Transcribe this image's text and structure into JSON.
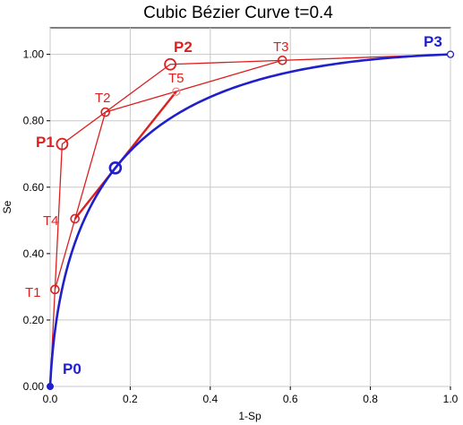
{
  "chart_data": {
    "type": "line",
    "title": "Cubic Bézier Curve t=0.4",
    "xlabel": "1-Sp",
    "ylabel": "Se",
    "xlim": [
      0,
      1
    ],
    "ylim": [
      0,
      1.08
    ],
    "x_ticks": [
      "0.0",
      "0.2",
      "0.4",
      "0.6",
      "0.8",
      "1.0"
    ],
    "x_tick_values": [
      0,
      0.2,
      0.4,
      0.6,
      0.8,
      1.0
    ],
    "y_ticks": [
      "0.00",
      "0.20",
      "0.40",
      "0.60",
      "0.80",
      "1.00"
    ],
    "y_tick_values": [
      0,
      0.2,
      0.4,
      0.6,
      0.8,
      1.0
    ],
    "grid": true,
    "t": 0.4,
    "control_points": [
      {
        "name": "P0",
        "x": 0.0,
        "y": 0.0
      },
      {
        "name": "P1",
        "x": 0.03,
        "y": 0.73
      },
      {
        "name": "P2",
        "x": 0.3,
        "y": 0.97
      },
      {
        "name": "P3",
        "x": 1.0,
        "y": 1.0
      }
    ],
    "construction_points": [
      {
        "name": "T1",
        "x": 0.012,
        "y": 0.292
      },
      {
        "name": "T2",
        "x": 0.138,
        "y": 0.826
      },
      {
        "name": "T3",
        "x": 0.58,
        "y": 0.982
      },
      {
        "name": "T4",
        "x": 0.062,
        "y": 0.505
      },
      {
        "name": "T5",
        "x": 0.315,
        "y": 0.888
      }
    ],
    "curve_point": {
      "x": 0.163,
      "y": 0.658
    },
    "colors": {
      "curve": "#1f1fcc",
      "construction": "#dd1f1f",
      "point_label_blue": "#1f1fcc",
      "point_label_red": "#dd1f1f"
    }
  }
}
